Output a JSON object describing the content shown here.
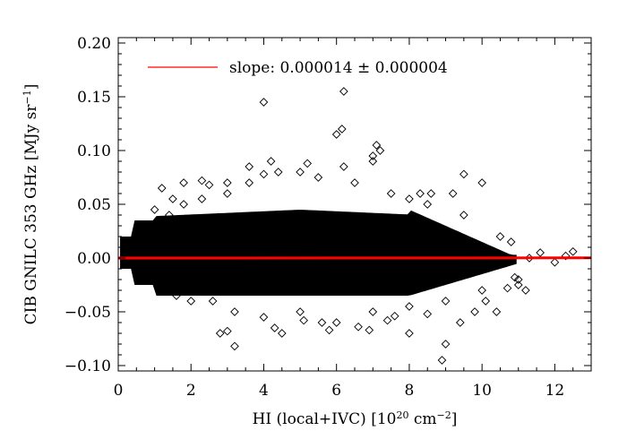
{
  "chart_data": {
    "type": "scatter",
    "xlabel": "HI (local+IVC)",
    "xlabel_unit_base": "[10",
    "xlabel_unit_exp": "20",
    "xlabel_unit_mid": " cm",
    "xlabel_unit_exp2": "−2",
    "xlabel_unit_end": "]",
    "ylabel": "CIB GNILC 353 GHz [MJy sr",
    "ylabel_exp": "−1",
    "ylabel_end": "]",
    "xlim": [
      0,
      13
    ],
    "ylim": [
      -0.105,
      0.205
    ],
    "xticks": [
      0,
      2,
      4,
      6,
      8,
      10,
      12
    ],
    "xtick_labels": [
      "0",
      "2",
      "4",
      "6",
      "8",
      "10",
      "12"
    ],
    "yticks": [
      -0.1,
      -0.05,
      0.0,
      0.05,
      0.1,
      0.15,
      0.2
    ],
    "ytick_labels": [
      "−0.10",
      "−0.05",
      "0.00",
      "0.05",
      "0.10",
      "0.15",
      "0.20"
    ],
    "legend": {
      "placement": "top-left",
      "label": "slope: 0.000014 ± 0.000004",
      "color": "#ff0000"
    },
    "fit_line": {
      "slope": 1.4e-05,
      "intercept": 0.0,
      "x_range": [
        0,
        13
      ],
      "color": "#ff0000"
    },
    "marker": "diamond-open",
    "marker_color": "#000000",
    "series": [
      {
        "points": [
          [
            0.12,
            0.0
          ],
          [
            0.2,
            0.005
          ],
          [
            0.3,
            -0.006
          ],
          [
            0.4,
            0.01
          ],
          [
            0.5,
            -0.012
          ],
          [
            0.6,
            0.02
          ],
          [
            0.8,
            -0.02
          ],
          [
            1.0,
            0.03
          ],
          [
            1.2,
            -0.03
          ],
          [
            1.4,
            0.04
          ],
          [
            1.6,
            -0.035
          ],
          [
            1.8,
            0.05
          ],
          [
            2.0,
            -0.04
          ],
          [
            2.3,
            0.055
          ],
          [
            2.6,
            -0.04
          ],
          [
            3.0,
            0.06
          ],
          [
            3.2,
            -0.05
          ],
          [
            3.6,
            0.07
          ],
          [
            4.0,
            -0.055
          ],
          [
            4.4,
            0.08
          ],
          [
            5.0,
            -0.05
          ],
          [
            5.5,
            0.075
          ],
          [
            6.0,
            -0.06
          ],
          [
            6.5,
            0.07
          ],
          [
            7.0,
            -0.05
          ],
          [
            7.5,
            0.06
          ],
          [
            8.0,
            -0.045
          ],
          [
            8.5,
            0.05
          ],
          [
            9.0,
            -0.04
          ],
          [
            9.5,
            0.04
          ],
          [
            10.0,
            -0.03
          ],
          [
            10.5,
            0.02
          ],
          [
            11.0,
            -0.02
          ],
          [
            11.3,
            0.0
          ],
          [
            11.6,
            0.005
          ],
          [
            12.0,
            -0.004
          ],
          [
            12.3,
            0.002
          ],
          [
            12.5,
            0.006
          ],
          [
            0.5,
            0.016
          ],
          [
            1.0,
            0.045
          ],
          [
            1.5,
            0.055
          ],
          [
            2.5,
            0.068
          ],
          [
            3.0,
            0.07
          ],
          [
            4.0,
            0.078
          ],
          [
            6.2,
            0.085
          ],
          [
            7.2,
            0.1
          ],
          [
            6.0,
            0.115
          ],
          [
            6.15,
            0.12
          ],
          [
            6.2,
            0.155
          ],
          [
            4.0,
            0.145
          ],
          [
            5.2,
            0.088
          ],
          [
            7.0,
            0.09
          ],
          [
            8.6,
            0.06
          ],
          [
            9.5,
            0.078
          ],
          [
            10.0,
            0.07
          ],
          [
            10.8,
            0.015
          ],
          [
            11.2,
            -0.03
          ],
          [
            11.0,
            -0.025
          ],
          [
            9.0,
            -0.08
          ],
          [
            8.9,
            -0.095
          ],
          [
            8.0,
            -0.07
          ],
          [
            7.4,
            -0.058
          ],
          [
            6.6,
            -0.064
          ],
          [
            5.8,
            -0.067
          ],
          [
            4.5,
            -0.07
          ],
          [
            4.3,
            -0.065
          ],
          [
            3.2,
            -0.082
          ],
          [
            3.0,
            -0.068
          ],
          [
            2.8,
            -0.07
          ],
          [
            9.8,
            -0.05
          ],
          [
            10.4,
            -0.05
          ],
          [
            10.7,
            -0.028
          ],
          [
            9.2,
            0.06
          ],
          [
            8.3,
            0.06
          ],
          [
            8.0,
            0.055
          ],
          [
            7.0,
            0.095
          ],
          [
            7.1,
            0.105
          ],
          [
            5.0,
            0.08
          ],
          [
            4.2,
            0.09
          ],
          [
            3.6,
            0.085
          ],
          [
            1.2,
            0.065
          ],
          [
            1.8,
            0.07
          ],
          [
            2.3,
            0.072
          ],
          [
            5.1,
            -0.058
          ],
          [
            5.6,
            -0.06
          ],
          [
            6.9,
            -0.067
          ],
          [
            7.6,
            -0.054
          ],
          [
            8.5,
            -0.052
          ],
          [
            9.4,
            -0.06
          ],
          [
            10.1,
            -0.04
          ],
          [
            10.9,
            -0.018
          ]
        ]
      }
    ]
  }
}
